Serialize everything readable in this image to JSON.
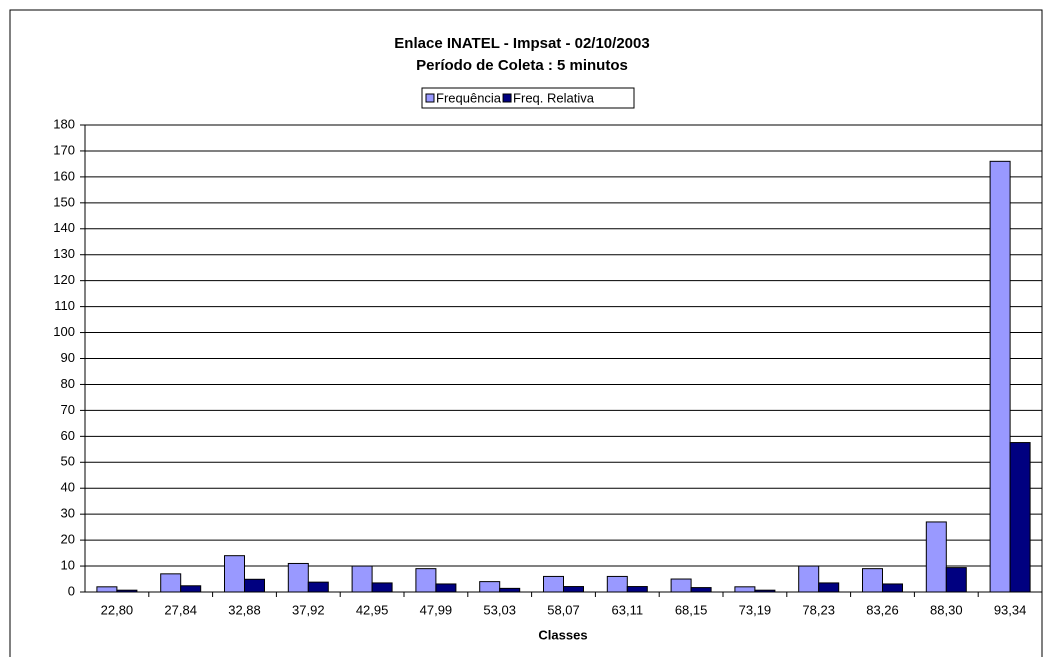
{
  "chart_data": {
    "type": "bar",
    "title": "Enlace INATEL - Impsat - 02/10/2003",
    "subtitle": "Período de Coleta : 5 minutos",
    "x_label": "Classes",
    "categories": [
      "22,80",
      "27,84",
      "32,88",
      "37,92",
      "42,95",
      "47,99",
      "53,03",
      "58,07",
      "63,11",
      "68,15",
      "73,19",
      "78,23",
      "83,26",
      "88,30",
      "93,34"
    ],
    "series": [
      {
        "name": "Frequência",
        "color": "#9999ff",
        "values": [
          2,
          7,
          14,
          11,
          10,
          9,
          4,
          6,
          6,
          5,
          2,
          10,
          9,
          27,
          166
        ]
      },
      {
        "name": "Freq. Relativa",
        "color": "#000080",
        "values": [
          0.7,
          2.4,
          4.9,
          3.8,
          3.5,
          3.1,
          1.4,
          2.1,
          2.1,
          1.7,
          0.7,
          3.5,
          3.1,
          9.4,
          57.6
        ]
      }
    ],
    "ylim": [
      0,
      180
    ],
    "yticks": [
      0,
      10,
      20,
      30,
      40,
      50,
      60,
      70,
      80,
      90,
      100,
      110,
      120,
      130,
      140,
      150,
      160,
      170,
      180
    ],
    "grid": true,
    "legend": "top"
  }
}
